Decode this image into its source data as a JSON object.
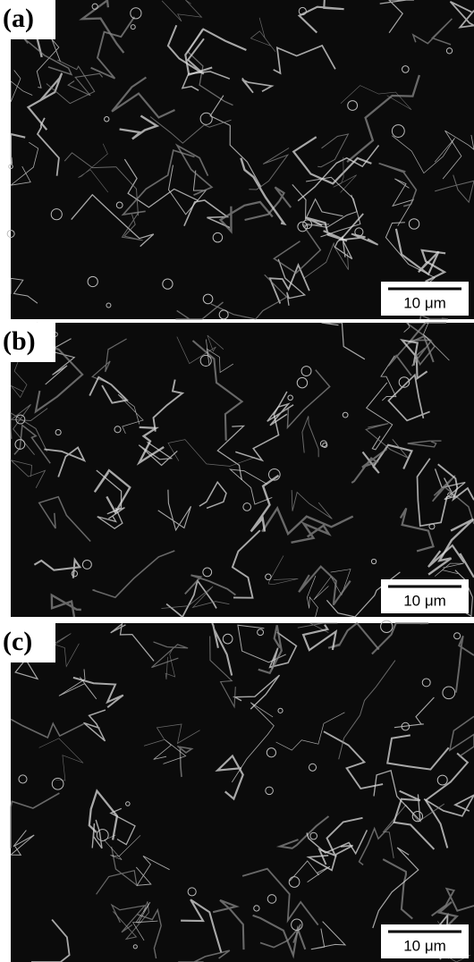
{
  "panels": [
    {
      "label": "(a)",
      "scale_bar": "10 μm"
    },
    {
      "label": "(b)",
      "scale_bar": "10 μm"
    },
    {
      "label": "(c)",
      "scale_bar": "10 μm"
    }
  ]
}
